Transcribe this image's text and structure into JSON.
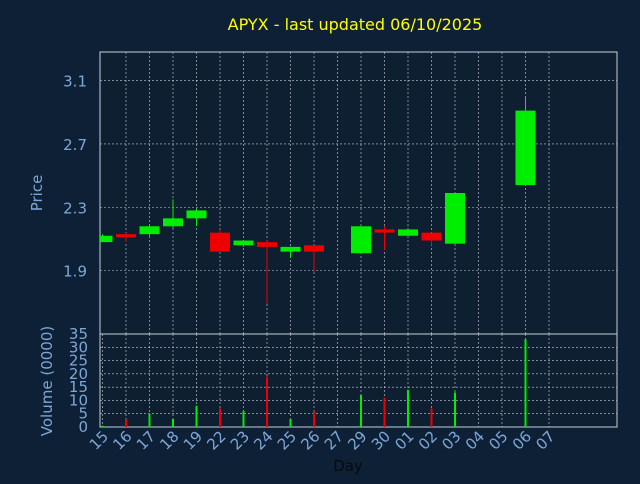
{
  "title": "APYX - last updated 06/10/2025",
  "colors": {
    "background": "#0d2035",
    "panel": "#0d1f30",
    "title": "#ffff00",
    "axis_text": "#7ea7d8",
    "frame": "#c8d0d8",
    "grid": "#c8d0d8",
    "up": "#00ee00",
    "down": "#ee0000"
  },
  "chart_data": [
    {
      "type": "candlestick",
      "title": "APYX - last updated 06/10/2025",
      "ylabel": "Price",
      "ylim": [
        1.5,
        3.28
      ],
      "y_ticks": [
        "1.9",
        "2.3",
        "2.7",
        "3.1"
      ],
      "x_ticks": [
        "15",
        "16",
        "17",
        "18",
        "19",
        "22",
        "23",
        "24",
        "25",
        "26",
        "27",
        "29",
        "30",
        "01",
        "02",
        "03",
        "04",
        "05",
        "06",
        "07"
      ],
      "grid": true,
      "candles": [
        {
          "x": "15",
          "open": 2.08,
          "close": 2.12,
          "high": 2.13,
          "low": 2.08
        },
        {
          "x": "16",
          "open": 2.13,
          "close": 2.11,
          "high": 2.14,
          "low": 2.08
        },
        {
          "x": "17",
          "open": 2.13,
          "close": 2.18,
          "high": 2.19,
          "low": 2.12
        },
        {
          "x": "18",
          "open": 2.18,
          "close": 2.23,
          "high": 2.35,
          "low": 2.17
        },
        {
          "x": "19",
          "open": 2.23,
          "close": 2.28,
          "high": 2.29,
          "low": 2.18
        },
        {
          "x": "22",
          "open": 2.14,
          "close": 2.02,
          "high": 2.16,
          "low": 2.02
        },
        {
          "x": "23",
          "open": 2.06,
          "close": 2.09,
          "high": 2.09,
          "low": 2.05
        },
        {
          "x": "24",
          "open": 2.08,
          "close": 2.05,
          "high": 2.09,
          "low": 1.69
        },
        {
          "x": "25",
          "open": 2.02,
          "close": 2.05,
          "high": 2.05,
          "low": 1.98
        },
        {
          "x": "26",
          "open": 2.06,
          "close": 2.02,
          "high": 2.06,
          "low": 1.89
        },
        {
          "x": "29",
          "open": 2.01,
          "close": 2.18,
          "high": 2.18,
          "low": 2.01
        },
        {
          "x": "30",
          "open": 2.16,
          "close": 2.14,
          "high": 2.18,
          "low": 2.03
        },
        {
          "x": "01",
          "open": 2.12,
          "close": 2.16,
          "high": 2.17,
          "low": 2.12
        },
        {
          "x": "02",
          "open": 2.14,
          "close": 2.09,
          "high": 2.14,
          "low": 2.06
        },
        {
          "x": "03",
          "open": 2.07,
          "close": 2.39,
          "high": 2.39,
          "low": 2.07
        },
        {
          "x": "06",
          "open": 2.44,
          "close": 2.91,
          "high": 3.0,
          "low": 2.44
        }
      ]
    },
    {
      "type": "bar",
      "ylabel": "Volume (0000)",
      "xlabel": "Day",
      "ylim": [
        0,
        35
      ],
      "y_ticks": [
        "0",
        "5",
        "10",
        "15",
        "20",
        "25",
        "30",
        "35"
      ],
      "x_ticks": [
        "15",
        "16",
        "17",
        "18",
        "19",
        "22",
        "23",
        "24",
        "25",
        "26",
        "27",
        "29",
        "30",
        "01",
        "02",
        "03",
        "04",
        "05",
        "06",
        "07"
      ],
      "grid": true,
      "bars": [
        {
          "x": "15",
          "value": 0.5,
          "dir": "up"
        },
        {
          "x": "16",
          "value": 3,
          "dir": "down"
        },
        {
          "x": "17",
          "value": 5,
          "dir": "up"
        },
        {
          "x": "18",
          "value": 3,
          "dir": "up"
        },
        {
          "x": "19",
          "value": 8,
          "dir": "up"
        },
        {
          "x": "22",
          "value": 7,
          "dir": "down"
        },
        {
          "x": "23",
          "value": 6,
          "dir": "up"
        },
        {
          "x": "24",
          "value": 19,
          "dir": "down"
        },
        {
          "x": "25",
          "value": 3,
          "dir": "up"
        },
        {
          "x": "26",
          "value": 6,
          "dir": "down"
        },
        {
          "x": "29",
          "value": 12,
          "dir": "up"
        },
        {
          "x": "30",
          "value": 11,
          "dir": "down"
        },
        {
          "x": "01",
          "value": 14,
          "dir": "up"
        },
        {
          "x": "02",
          "value": 7,
          "dir": "down"
        },
        {
          "x": "03",
          "value": 13,
          "dir": "up"
        },
        {
          "x": "06",
          "value": 33,
          "dir": "up"
        }
      ]
    }
  ]
}
